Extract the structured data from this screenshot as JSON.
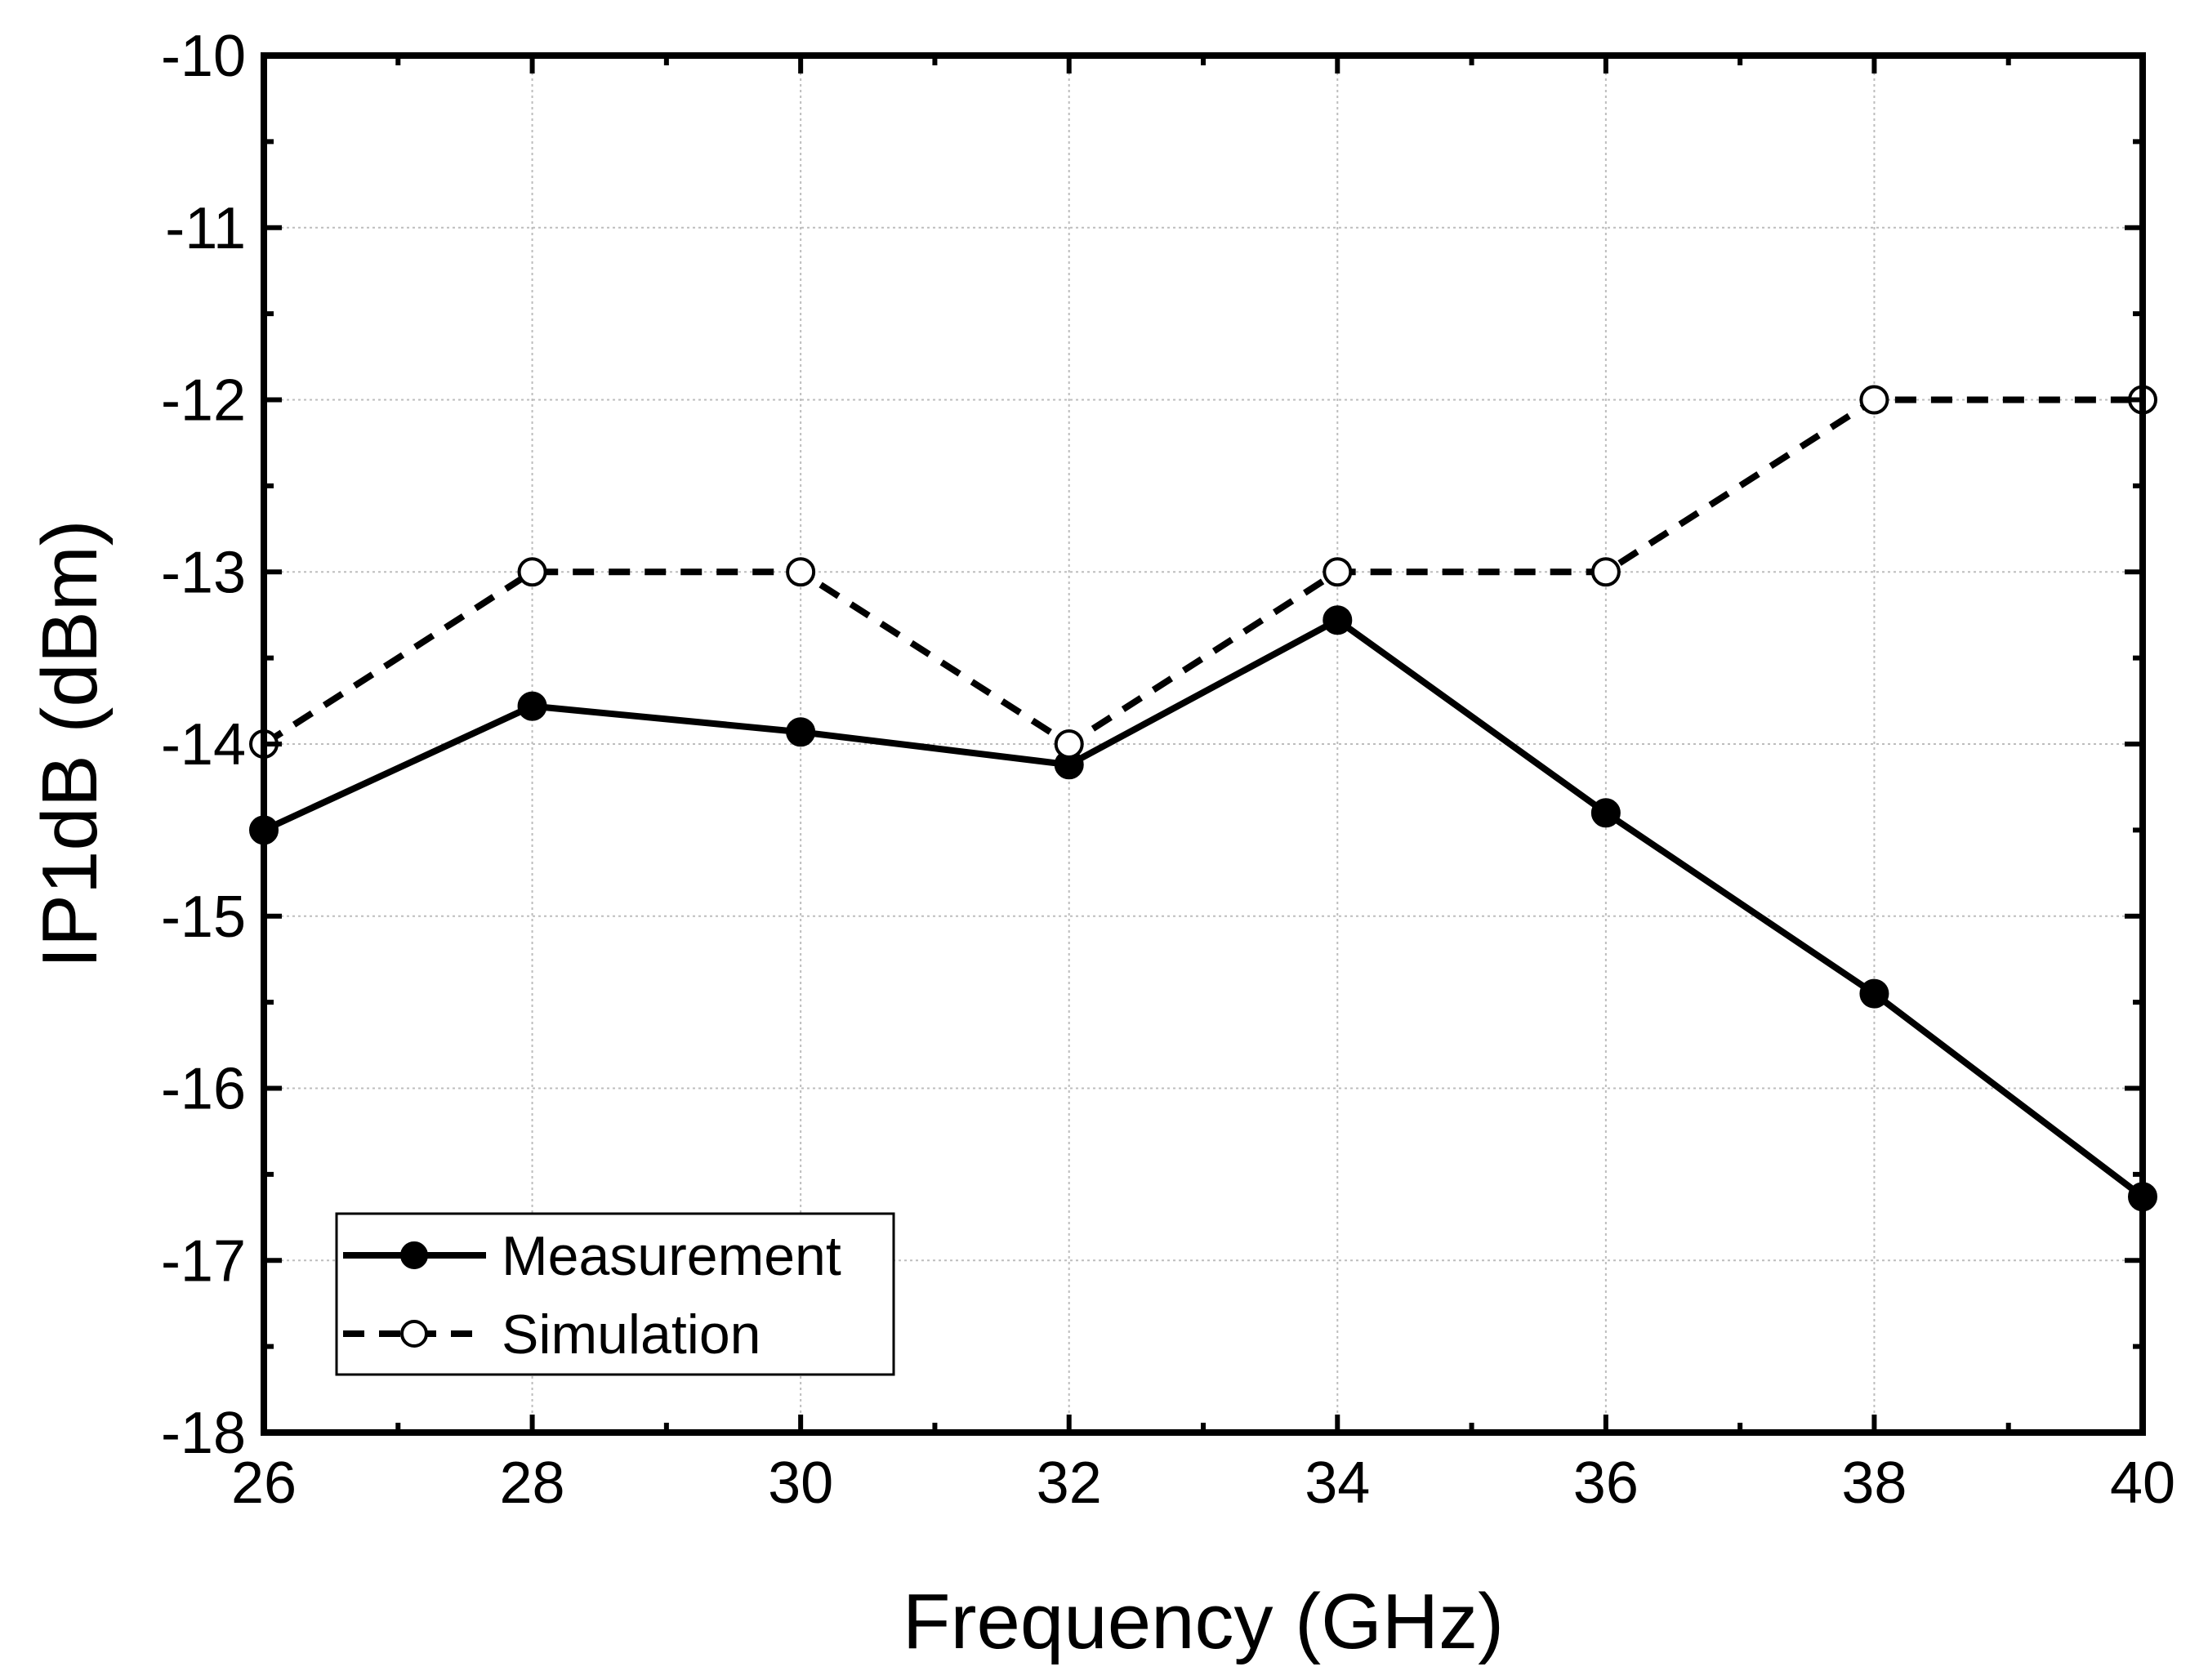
{
  "chart_data": {
    "type": "line",
    "title": "",
    "xlabel": "Frequency (GHz)",
    "ylabel": "IP1dB (dBm)",
    "xlim": [
      26,
      40
    ],
    "ylim": [
      -18,
      -10
    ],
    "xticks": [
      26,
      28,
      30,
      32,
      34,
      36,
      38,
      40
    ],
    "yticks": [
      -18,
      -17,
      -16,
      -15,
      -14,
      -13,
      -12,
      -11,
      -10
    ],
    "xtick_labels": [
      "26",
      "28",
      "30",
      "32",
      "34",
      "36",
      "38",
      "40"
    ],
    "ytick_labels": [
      "-18",
      "-17",
      "-16",
      "-15",
      "-14",
      "-13",
      "-12",
      "-11",
      "-10"
    ],
    "grid": true,
    "legend_position": "bottom-left",
    "series": [
      {
        "name": "Measurement",
        "style": "solid",
        "marker": "filled-circle",
        "x": [
          26,
          28,
          30,
          32,
          34,
          36,
          38,
          40
        ],
        "y": [
          -14.5,
          -13.78,
          -13.93,
          -14.12,
          -13.28,
          -14.4,
          -15.45,
          -16.63
        ]
      },
      {
        "name": "Simulation",
        "style": "dashed",
        "marker": "open-circle",
        "x": [
          26,
          28,
          30,
          32,
          34,
          36,
          38,
          40
        ],
        "y": [
          -14,
          -13,
          -13,
          -14,
          -13,
          -13,
          -12,
          -12
        ]
      }
    ],
    "colors": {
      "line": "#000000",
      "grid": "#bdbdbd",
      "background": "#ffffff"
    }
  }
}
